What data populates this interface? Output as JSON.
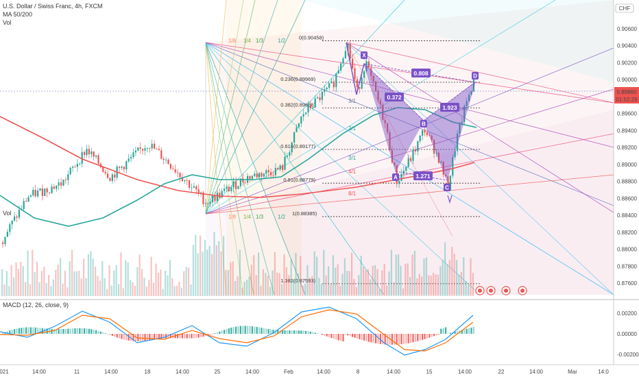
{
  "header": {
    "symbol": "U.S. Dollar / Swiss Franc, 4h, FXCM",
    "ma_label": "MA 50/200",
    "vol_label": "Vol",
    "currency": "CHF"
  },
  "macd": {
    "label": "MACD (12, 26, close, 9)"
  },
  "colors": {
    "up": "#26a69a",
    "down": "#ef5350",
    "ma50": "#26a69a",
    "ma200": "#ef5350",
    "pattern": "#7b52c7",
    "price_badge": "#ef5350"
  },
  "chart_data": {
    "type": "candlestick",
    "price_axis": {
      "ticks": [
        "0.90600",
        "0.90400",
        "0.90200",
        "0.90000",
        "0.89800",
        "0.89600",
        "0.89400",
        "0.89200",
        "0.89000",
        "0.88800",
        "0.88600",
        "0.88400",
        "0.88200",
        "0.88000",
        "0.87800",
        "0.87600"
      ]
    },
    "current_price": {
      "value": "0.89860",
      "countdown": "01:52:29"
    },
    "time_axis": [
      "021",
      "14:00",
      "11",
      "14:00",
      "18",
      "14:00",
      "25",
      "14:00",
      "Feb",
      "14:00",
      "8",
      "14:00",
      "15",
      "14:00",
      "22",
      "14:00",
      "Mar",
      "14:0"
    ],
    "macd_axis": [
      "0.00200",
      "0.00000",
      "-0.00200"
    ],
    "fib_levels": [
      {
        "label": "0(0.90458)",
        "price": 0.90458
      },
      {
        "label": "0.236(0.89969)",
        "price": 0.89969
      },
      {
        "label": "0.382(0.89666)",
        "price": 0.89666
      },
      {
        "label": "0.618(0.89177)",
        "price": 0.89177
      },
      {
        "label": "0.81(0.88779)",
        "price": 0.88779
      },
      {
        "label": "1(0.88385)",
        "price": 0.88385
      },
      {
        "label": "1.382(0.87593)",
        "price": 0.87593
      }
    ],
    "gann_fan_labels_top": [
      "1/8",
      "1/4",
      "1/3",
      "1/2"
    ],
    "gann_fan_labels_bottom": [
      "1/8",
      "1/4",
      "1/3",
      "1/2"
    ],
    "fan_ratio_labels": [
      "3/1",
      "2/1",
      "3/1",
      "4/1",
      "8/1"
    ],
    "harmonic_points": [
      {
        "label": "X",
        "price": 0.9022
      },
      {
        "label": "A",
        "price": 0.8879
      },
      {
        "label": "B",
        "price": 0.8942
      },
      {
        "label": "C",
        "price": 0.8872
      },
      {
        "label": "D",
        "price": 0.9007
      }
    ],
    "harmonic_ratios": [
      "0.808",
      "0.372",
      "1.923",
      "1.271"
    ]
  }
}
